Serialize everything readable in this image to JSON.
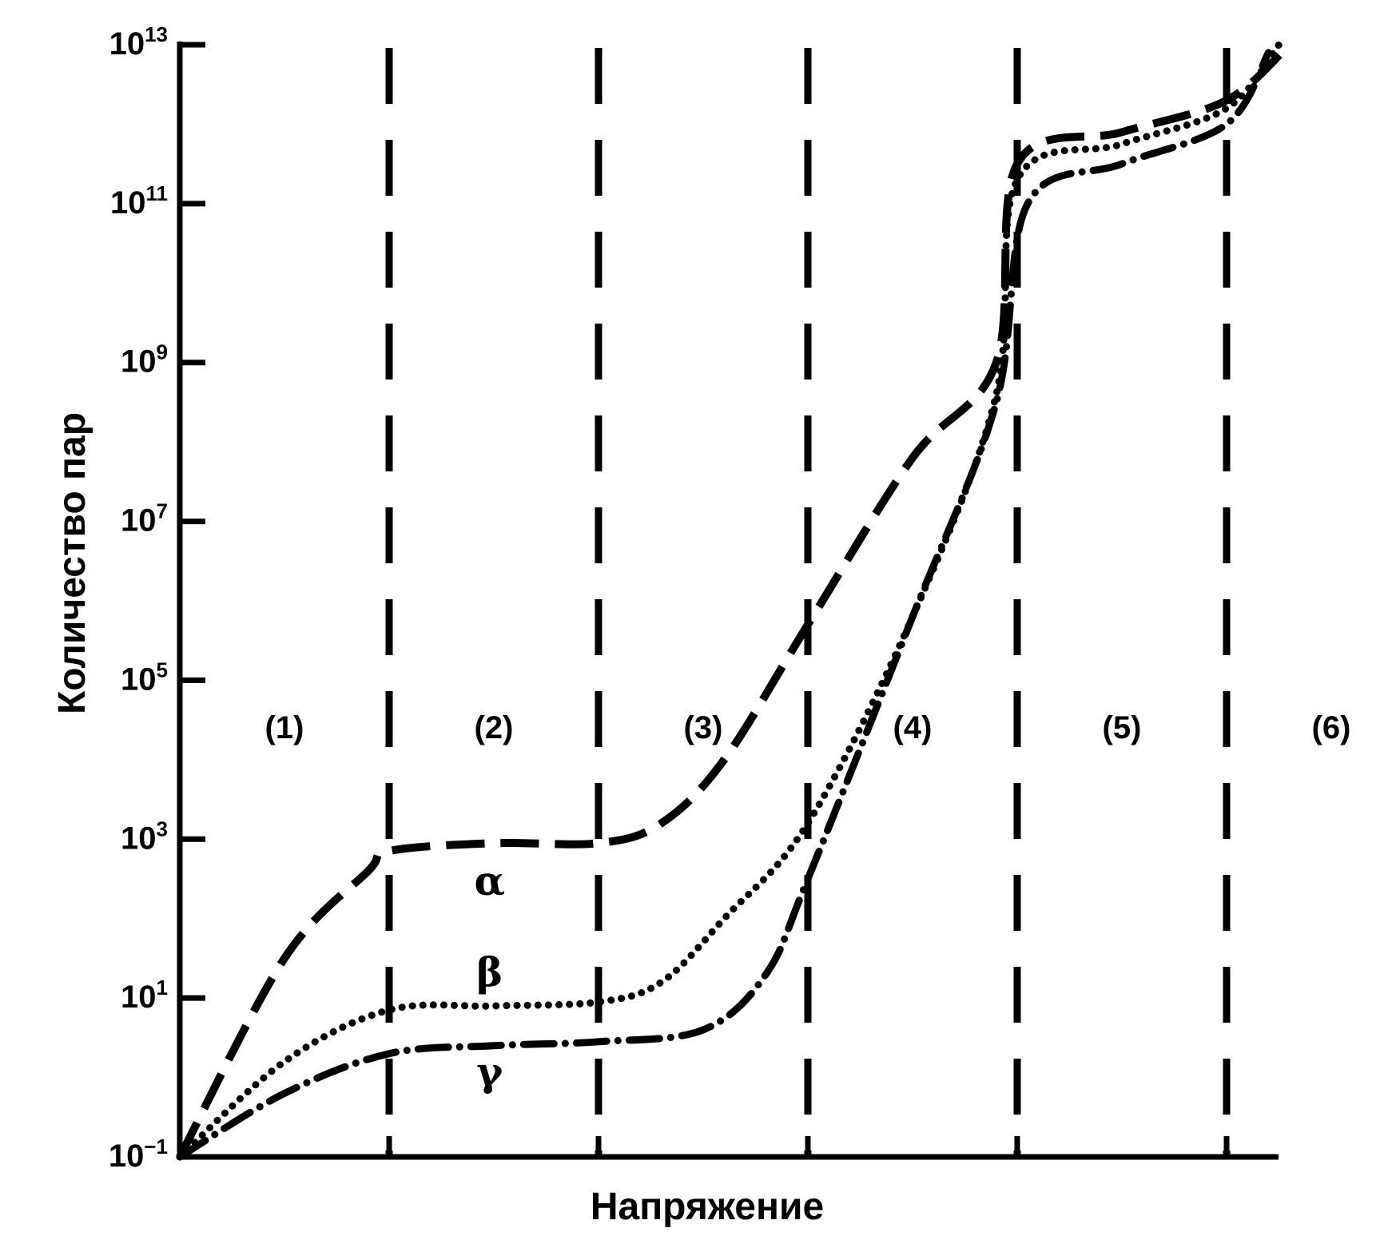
{
  "chart_data": {
    "type": "line",
    "xlabel": "Напряжение",
    "ylabel": "Количество пар",
    "y_scale": "log",
    "ylim": [
      0.1,
      10000000000000
    ],
    "y_ticks": [
      {
        "base": "10",
        "exp": "−1",
        "value": 0.1
      },
      {
        "base": "10",
        "exp": "1",
        "value": 10
      },
      {
        "base": "10",
        "exp": "3",
        "value": 1000
      },
      {
        "base": "10",
        "exp": "5",
        "value": 100000
      },
      {
        "base": "10",
        "exp": "7",
        "value": 10000000
      },
      {
        "base": "10",
        "exp": "9",
        "value": 1000000000
      },
      {
        "base": "10",
        "exp": "11",
        "value": 100000000000
      },
      {
        "base": "10",
        "exp": "13",
        "value": 10000000000000
      }
    ],
    "regions": [
      "(1)",
      "(2)",
      "(3)",
      "(4)",
      "(5)",
      "(6)"
    ],
    "grid": "vertical dashed region boundaries",
    "series": [
      {
        "name": "α",
        "style": "dashed",
        "points": [
          [
            0,
            -1
          ],
          [
            0.5,
            1.5
          ],
          [
            0.9,
            2.6
          ],
          [
            1.0,
            2.85
          ],
          [
            1.5,
            2.95
          ],
          [
            2.0,
            2.95
          ],
          [
            2.3,
            3.2
          ],
          [
            2.6,
            4.0
          ],
          [
            3.0,
            5.7
          ],
          [
            3.5,
            7.8
          ],
          [
            3.9,
            9.0
          ],
          [
            4.0,
            11.5
          ],
          [
            4.5,
            11.9
          ],
          [
            5.0,
            12.3
          ],
          [
            5.3,
            13.0
          ]
        ]
      },
      {
        "name": "β",
        "style": "dotted",
        "points": [
          [
            0,
            -1
          ],
          [
            0.5,
            0.2
          ],
          [
            1.0,
            0.85
          ],
          [
            1.5,
            0.9
          ],
          [
            2.0,
            0.95
          ],
          [
            2.3,
            1.2
          ],
          [
            2.6,
            2.0
          ],
          [
            3.0,
            3.2
          ],
          [
            3.5,
            5.8
          ],
          [
            3.9,
            8.6
          ],
          [
            4.0,
            11.3
          ],
          [
            4.5,
            11.75
          ],
          [
            5.0,
            12.2
          ],
          [
            5.25,
            13.0
          ]
        ]
      },
      {
        "name": "γ",
        "style": "dash-dot",
        "points": [
          [
            0,
            -1
          ],
          [
            0.5,
            -0.2
          ],
          [
            1.0,
            0.3
          ],
          [
            1.5,
            0.4
          ],
          [
            2.0,
            0.45
          ],
          [
            2.5,
            0.6
          ],
          [
            2.8,
            1.3
          ],
          [
            3.0,
            2.5
          ],
          [
            3.5,
            5.8
          ],
          [
            3.9,
            8.5
          ],
          [
            4.05,
            11.0
          ],
          [
            4.5,
            11.5
          ],
          [
            5.0,
            12.0
          ],
          [
            5.2,
            12.9
          ]
        ]
      }
    ]
  }
}
